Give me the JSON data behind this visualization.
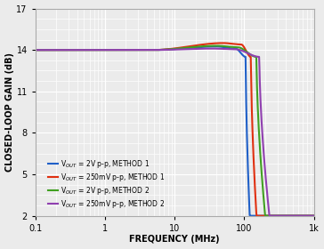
{
  "xlabel": "FREQUENCY (MHz)",
  "ylabel": "CLOSED-LOOP GAIN (dB)",
  "xlim": [
    0.1,
    1000
  ],
  "ylim": [
    2,
    17
  ],
  "yticks": [
    2,
    5,
    8,
    11,
    14,
    17
  ],
  "background_color": "#ebebeb",
  "grid_color": "#ffffff",
  "legend": [
    {
      "label": "V$_{OUT}$ = 2V p-p, METHOD 1",
      "color": "#2060c8"
    },
    {
      "label": "V$_{OUT}$ = 250mV p-p, METHOD 1",
      "color": "#e03010"
    },
    {
      "label": "V$_{OUT}$ = 2V p-p, METHOD 2",
      "color": "#40a020"
    },
    {
      "label": "V$_{OUT}$ = 250mV p-p, METHOD 2",
      "color": "#9040b0"
    }
  ],
  "curves_data": {
    "blue": {
      "flat": 14.0,
      "rise_start": 5,
      "peak_f": 40,
      "peak_v": 14.25,
      "knee_f": 75,
      "knee_v": 14.1,
      "drop_f": 105,
      "end_f": 120,
      "end_v": 2.0
    },
    "red": {
      "flat": 14.0,
      "rise_start": 5,
      "peak_f": 50,
      "peak_v": 14.5,
      "knee_f": 90,
      "knee_v": 14.4,
      "drop_f": 125,
      "end_f": 150,
      "end_v": 2.0
    },
    "green": {
      "flat": 14.0,
      "rise_start": 5,
      "peak_f": 40,
      "peak_v": 14.3,
      "knee_f": 80,
      "knee_v": 14.2,
      "drop_f": 150,
      "end_f": 200,
      "end_v": 2.0
    },
    "purple": {
      "flat": 14.0,
      "rise_start": 5,
      "peak_f": 35,
      "peak_v": 14.1,
      "knee_f": 75,
      "knee_v": 14.05,
      "drop_f": 165,
      "end_f": 230,
      "end_v": 2.0
    }
  }
}
